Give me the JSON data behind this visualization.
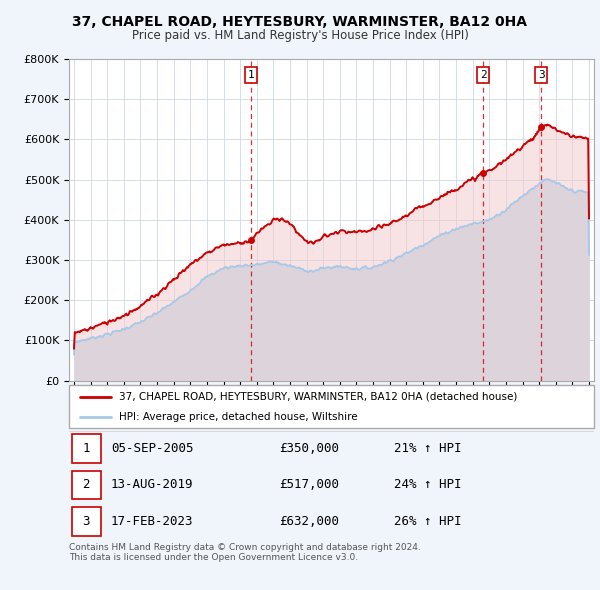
{
  "title": "37, CHAPEL ROAD, HEYTESBURY, WARMINSTER, BA12 0HA",
  "subtitle": "Price paid vs. HM Land Registry's House Price Index (HPI)",
  "ylabel_ticks": [
    "£0",
    "£100K",
    "£200K",
    "£300K",
    "£400K",
    "£500K",
    "£600K",
    "£700K",
    "£800K"
  ],
  "ytick_values": [
    0,
    100000,
    200000,
    300000,
    400000,
    500000,
    600000,
    700000,
    800000
  ],
  "ylim": [
    0,
    800000
  ],
  "xlim_start": 1995,
  "xlim_end": 2026,
  "xtick_years": [
    1995,
    1996,
    1997,
    1998,
    1999,
    2000,
    2001,
    2002,
    2003,
    2004,
    2005,
    2006,
    2007,
    2008,
    2009,
    2010,
    2011,
    2012,
    2013,
    2014,
    2015,
    2016,
    2017,
    2018,
    2019,
    2020,
    2021,
    2022,
    2023,
    2024,
    2025,
    2026
  ],
  "sale_dates": [
    2005.67,
    2019.62,
    2023.12
  ],
  "sale_prices": [
    350000,
    517000,
    632000
  ],
  "sale_labels": [
    "1",
    "2",
    "3"
  ],
  "sale_info": [
    {
      "label": "1",
      "date": "05-SEP-2005",
      "price": "£350,000",
      "hpi": "21% ↑ HPI"
    },
    {
      "label": "2",
      "date": "13-AUG-2019",
      "price": "£517,000",
      "hpi": "24% ↑ HPI"
    },
    {
      "label": "3",
      "date": "17-FEB-2023",
      "price": "£632,000",
      "hpi": "26% ↑ HPI"
    }
  ],
  "legend_line1": "37, CHAPEL ROAD, HEYTESBURY, WARMINSTER, BA12 0HA (detached house)",
  "legend_line2": "HPI: Average price, detached house, Wiltshire",
  "footer": "Contains HM Land Registry data © Crown copyright and database right 2024.\nThis data is licensed under the Open Government Licence v3.0.",
  "hpi_color": "#a8c8e8",
  "hpi_fill_color": "#c8dff0",
  "price_color": "#cc0000",
  "price_fill_color": "#f0c8c8",
  "vline_color": "#cc0000",
  "background_color": "#f0f4fb",
  "plot_bg_color": "#ffffff",
  "grid_color": "#d0d8e8"
}
